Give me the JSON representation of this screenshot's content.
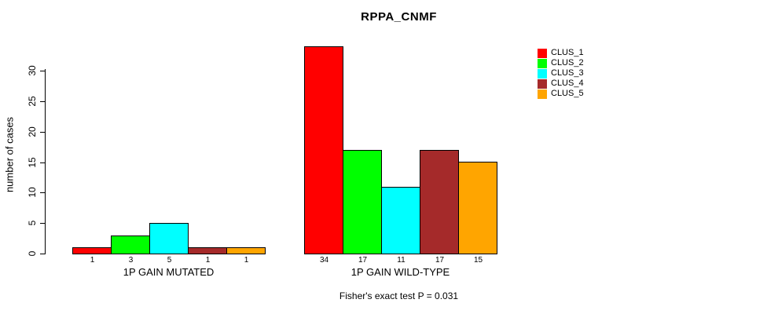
{
  "chart_data": {
    "type": "bar",
    "title": "RPPA_CNMF",
    "xlabel": "",
    "ylabel": "number of cases",
    "ylim": [
      0,
      30
    ],
    "yticks": [
      0,
      5,
      10,
      15,
      20,
      25,
      30
    ],
    "grid": false,
    "legend_position": "top-right",
    "bar_value_labels": true,
    "categories": [
      "1P GAIN MUTATED",
      "1P GAIN WILD-TYPE"
    ],
    "series": [
      {
        "name": "CLUS_1",
        "color": "#FF0000",
        "values": [
          1,
          34
        ]
      },
      {
        "name": "CLUS_2",
        "color": "#00FF00",
        "values": [
          3,
          17
        ]
      },
      {
        "name": "CLUS_3",
        "color": "#00FFFF",
        "values": [
          5,
          11
        ]
      },
      {
        "name": "CLUS_4",
        "color": "#A52A2A",
        "values": [
          1,
          17
        ]
      },
      {
        "name": "CLUS_5",
        "color": "#FFA500",
        "values": [
          1,
          15
        ]
      }
    ],
    "annotation": "Fisher's exact test P = 0.031"
  }
}
